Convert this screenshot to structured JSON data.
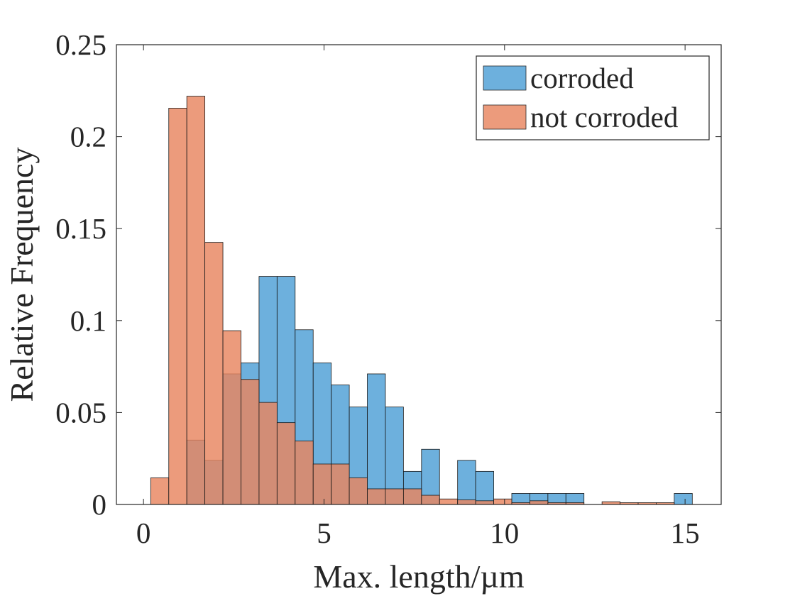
{
  "chart_data": {
    "type": "bar",
    "title": "",
    "xlabel": "Max. length/µm",
    "ylabel": "Relative Frequency",
    "xlim": [
      -0.75,
      16
    ],
    "ylim": [
      0,
      0.25
    ],
    "grid": false,
    "legend_position": "top-right",
    "bin_width": 0.5,
    "overlay": true,
    "xticks": [
      0,
      5,
      10,
      15
    ],
    "xtick_labels": [
      "0",
      "5",
      "10",
      "15"
    ],
    "yticks": [
      0,
      0.05,
      0.1,
      0.15,
      0.2,
      0.25
    ],
    "ytick_labels": [
      "0",
      "0.05",
      "0.1",
      "0.15",
      "0.2",
      "0.25"
    ],
    "bin_edges": [
      0.2,
      0.7,
      1.2,
      1.7,
      2.2,
      2.7,
      3.2,
      3.7,
      4.2,
      4.7,
      5.2,
      5.7,
      6.2,
      6.7,
      7.2,
      7.7,
      8.2,
      8.7,
      9.2,
      9.7,
      10.2,
      10.7,
      11.2,
      11.7,
      12.2,
      12.7,
      13.2,
      13.7,
      14.2,
      14.7,
      15.2
    ],
    "series": [
      {
        "name": "corroded",
        "color": "#4d9fd6",
        "values": [
          0,
          0,
          0.035,
          0.024,
          0.071,
          0.077,
          0.124,
          0.124,
          0.095,
          0.077,
          0.065,
          0.053,
          0.071,
          0.053,
          0.018,
          0.03,
          0,
          0.024,
          0.018,
          0,
          0.006,
          0.006,
          0.006,
          0.006,
          0,
          0,
          0,
          0,
          0,
          0.006
        ]
      },
      {
        "name": "not corroded",
        "color": "#e8855f",
        "values": [
          0.0145,
          0.2155,
          0.222,
          0.1425,
          0.0945,
          0.068,
          0.0555,
          0.0445,
          0.0345,
          0.022,
          0.022,
          0.0145,
          0.0085,
          0.0085,
          0.0085,
          0.005,
          0.003,
          0.0025,
          0.002,
          0.003,
          0.001,
          0.002,
          0.001,
          0.001,
          0,
          0.0015,
          0.001,
          0.001,
          0.001,
          0
        ]
      }
    ]
  }
}
